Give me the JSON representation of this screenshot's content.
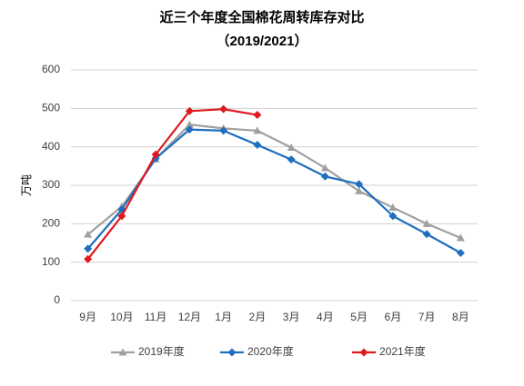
{
  "chart_data": {
    "type": "line",
    "title": "近三个年度全国棉花周转库存对比",
    "subtitle": "（2019/2021）",
    "y_label": "万吨",
    "categories": [
      "9月",
      "10月",
      "11月",
      "12月",
      "1月",
      "2月",
      "3月",
      "4月",
      "5月",
      "6月",
      "7月",
      "8月"
    ],
    "series": [
      {
        "name": "2019年度",
        "color": "#a0a0a0",
        "marker": "triangle",
        "values": [
          172,
          245,
          368,
          458,
          448,
          442,
          398,
          345,
          285,
          242,
          200,
          163
        ]
      },
      {
        "name": "2020年度",
        "color": "#1f6fbf",
        "marker": "diamond",
        "values": [
          135,
          237,
          370,
          445,
          442,
          405,
          367,
          323,
          303,
          220,
          173,
          124
        ]
      },
      {
        "name": "2021年度",
        "color": "#e0191f",
        "marker": "diamond",
        "values": [
          108,
          220,
          380,
          493,
          498,
          483,
          null,
          null,
          null,
          null,
          null,
          null
        ]
      }
    ],
    "ylim": [
      0,
      600
    ],
    "yticks": [
      0,
      100,
      200,
      300,
      400,
      500,
      600
    ],
    "grid": true,
    "legend": "bottom"
  }
}
